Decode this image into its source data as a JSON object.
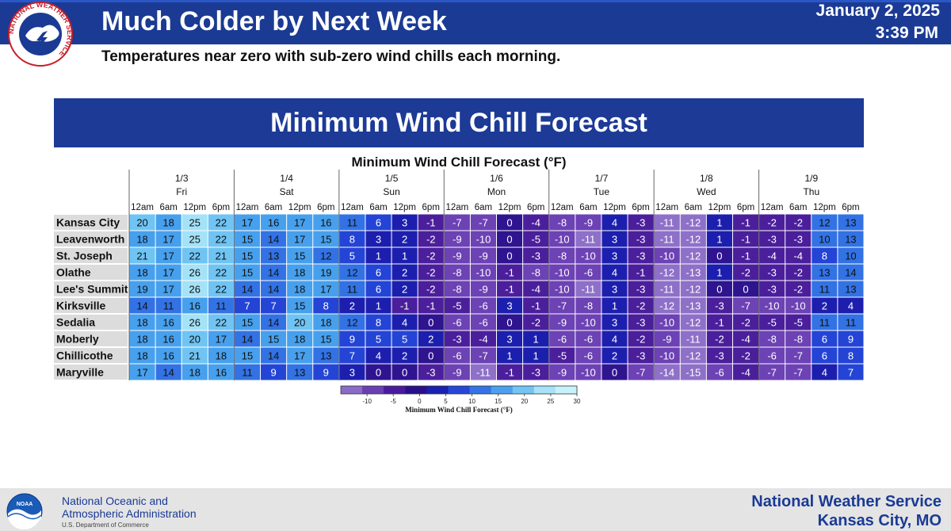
{
  "header": {
    "title": "Much Colder by Next Week",
    "subtitle": "Temperatures near zero with sub-zero wind chills each morning.",
    "date": "January 2, 2025",
    "time": "3:39 PM",
    "logo_text": "NATIONAL WEATHER SERVICE",
    "colors": {
      "band": "#1a3a94"
    }
  },
  "banner": {
    "title": "Minimum Wind Chill Forecast"
  },
  "chart_data": {
    "type": "heatmap",
    "title": "Minimum Wind Chill Forecast (°F)",
    "days": [
      {
        "date": "1/3",
        "day": "Fri"
      },
      {
        "date": "1/4",
        "day": "Sat"
      },
      {
        "date": "1/5",
        "day": "Sun"
      },
      {
        "date": "1/6",
        "day": "Mon"
      },
      {
        "date": "1/7",
        "day": "Tue"
      },
      {
        "date": "1/8",
        "day": "Wed"
      },
      {
        "date": "1/9",
        "day": "Thu"
      }
    ],
    "times": [
      "12am",
      "6am",
      "12pm",
      "6pm"
    ],
    "locations": [
      "Kansas City",
      "Leavenworth",
      "St. Joseph",
      "Olathe",
      "Lee's Summit",
      "Kirksville",
      "Sedalia",
      "Moberly",
      "Chillicothe",
      "Maryville"
    ],
    "values": [
      [
        20,
        18,
        25,
        22,
        17,
        16,
        17,
        16,
        11,
        6,
        3,
        -1,
        -7,
        -7,
        0,
        -4,
        -8,
        -9,
        4,
        -3,
        -11,
        -12,
        1,
        -1,
        -2,
        -2,
        12,
        13
      ],
      [
        18,
        17,
        25,
        22,
        15,
        14,
        17,
        15,
        8,
        3,
        2,
        -2,
        -9,
        -10,
        0,
        -5,
        -10,
        -11,
        3,
        -3,
        -11,
        -12,
        1,
        -1,
        -3,
        -3,
        10,
        13
      ],
      [
        21,
        17,
        22,
        21,
        15,
        13,
        15,
        12,
        5,
        1,
        1,
        -2,
        -9,
        -9,
        0,
        -3,
        -8,
        -10,
        3,
        -3,
        -10,
        -12,
        0,
        -1,
        -4,
        -4,
        8,
        10
      ],
      [
        18,
        17,
        26,
        22,
        15,
        14,
        18,
        19,
        12,
        6,
        2,
        -2,
        -8,
        -10,
        -1,
        -8,
        -10,
        -6,
        4,
        -1,
        -12,
        -13,
        1,
        -2,
        -3,
        -2,
        13,
        14
      ],
      [
        19,
        17,
        26,
        22,
        14,
        14,
        18,
        17,
        11,
        6,
        2,
        -2,
        -8,
        -9,
        -1,
        -4,
        -10,
        -11,
        3,
        -3,
        -11,
        -12,
        0,
        0,
        -3,
        -2,
        11,
        13
      ],
      [
        14,
        11,
        16,
        11,
        7,
        7,
        15,
        8,
        2,
        1,
        -1,
        -1,
        -5,
        -6,
        3,
        -1,
        -7,
        -8,
        1,
        -2,
        -12,
        -13,
        -3,
        -7,
        -10,
        -10,
        2,
        4
      ],
      [
        18,
        16,
        26,
        22,
        15,
        14,
        20,
        18,
        12,
        8,
        4,
        0,
        -6,
        -6,
        0,
        -2,
        -9,
        -10,
        3,
        -3,
        -10,
        -12,
        -1,
        -2,
        -5,
        -5,
        11,
        11
      ],
      [
        18,
        16,
        20,
        17,
        14,
        15,
        18,
        15,
        9,
        5,
        5,
        2,
        -3,
        -4,
        3,
        1,
        -6,
        -6,
        4,
        -2,
        -9,
        -11,
        -2,
        -4,
        -8,
        -8,
        6,
        9
      ],
      [
        18,
        16,
        21,
        18,
        15,
        14,
        17,
        13,
        7,
        4,
        2,
        0,
        -6,
        -7,
        1,
        1,
        -5,
        -6,
        2,
        -3,
        -10,
        -12,
        -3,
        -2,
        -6,
        -7,
        6,
        8
      ],
      [
        17,
        14,
        18,
        16,
        11,
        9,
        13,
        9,
        3,
        0,
        0,
        -3,
        -9,
        -11,
        -1,
        -3,
        -9,
        -10,
        0,
        -7,
        -14,
        -15,
        -6,
        -4,
        -7,
        -7,
        4,
        7
      ]
    ],
    "colorbar": {
      "label": "Minimum Wind Chill Forecast (°F)",
      "ticks": [
        -10,
        -5,
        0,
        5,
        10,
        15,
        20,
        25,
        30
      ],
      "range": [
        -15,
        30
      ],
      "colors": [
        "#8b6bc9",
        "#6a3fb3",
        "#4a1a9e",
        "#2a0f8a",
        "#1a20b0",
        "#2646d8",
        "#3474e6",
        "#4aa0ee",
        "#72c4f3",
        "#a6e2f8",
        "#c8f2fb"
      ]
    }
  },
  "footer": {
    "agency_line1": "National Oceanic and",
    "agency_line2": "Atmospheric Administration",
    "department": "U.S. Department of Commerce",
    "noaa_text": "NOAA",
    "office_line1": "National Weather Service",
    "office_line2": "Kansas City, MO"
  }
}
